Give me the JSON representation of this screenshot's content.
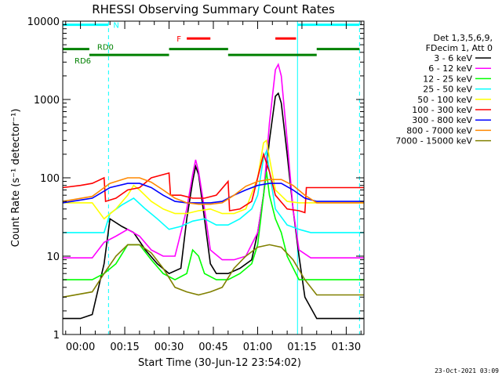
{
  "chart_data": {
    "type": "line",
    "title": "RHESSI Observing Summary Count Rates",
    "xlabel": "Start Time (30-Jun-12 23:54:02)",
    "ylabel": "Count Rate (s⁻¹ detector⁻¹)",
    "y_scale": "log",
    "ylim": [
      1,
      10000
    ],
    "xlim_minutes": [
      -6,
      96
    ],
    "x_ticks": [
      {
        "label": "00:00",
        "minute": 0
      },
      {
        "label": "00:15",
        "minute": 15
      },
      {
        "label": "00:30",
        "minute": 30
      },
      {
        "label": "00:45",
        "minute": 45
      },
      {
        "label": "01:00",
        "minute": 60
      },
      {
        "label": "01:15",
        "minute": 75
      },
      {
        "label": "01:30",
        "minute": 90
      }
    ],
    "y_ticks": [
      {
        "label": "1",
        "value": 1
      },
      {
        "label": "10",
        "value": 10
      },
      {
        "label": "100",
        "value": 100
      },
      {
        "label": "1000",
        "value": 1000
      },
      {
        "label": "10000",
        "value": 10000
      }
    ],
    "legend_header": [
      "Det 1,3,5,6,9,",
      "FDecim 1, Att 0"
    ],
    "legend_position": "right",
    "series": [
      {
        "name": "3 - 6 keV",
        "color": "#000000",
        "values": [
          [
            -6,
            1.6
          ],
          [
            0,
            1.6
          ],
          [
            4,
            1.8
          ],
          [
            8,
            8
          ],
          [
            10,
            30
          ],
          [
            14,
            24
          ],
          [
            18,
            20
          ],
          [
            22,
            12
          ],
          [
            26,
            8
          ],
          [
            30,
            6
          ],
          [
            34,
            7
          ],
          [
            36,
            30
          ],
          [
            38,
            90
          ],
          [
            39,
            140
          ],
          [
            40,
            110
          ],
          [
            42,
            30
          ],
          [
            44,
            8
          ],
          [
            46,
            6
          ],
          [
            50,
            6
          ],
          [
            54,
            7
          ],
          [
            58,
            9
          ],
          [
            60,
            20
          ],
          [
            62,
            60
          ],
          [
            64,
            300
          ],
          [
            66,
            1100
          ],
          [
            67,
            1200
          ],
          [
            68,
            900
          ],
          [
            70,
            200
          ],
          [
            72,
            40
          ],
          [
            74,
            10
          ],
          [
            76,
            3
          ],
          [
            80,
            1.6
          ],
          [
            96,
            1.6
          ]
        ]
      },
      {
        "name": "6 - 12 keV",
        "color": "#ff00ff",
        "values": [
          [
            -6,
            9.5
          ],
          [
            4,
            9.5
          ],
          [
            8,
            15
          ],
          [
            12,
            18
          ],
          [
            16,
            22
          ],
          [
            20,
            18
          ],
          [
            24,
            12
          ],
          [
            28,
            10
          ],
          [
            32,
            10
          ],
          [
            36,
            40
          ],
          [
            38,
            110
          ],
          [
            39,
            170
          ],
          [
            40,
            120
          ],
          [
            42,
            40
          ],
          [
            44,
            12
          ],
          [
            48,
            9
          ],
          [
            52,
            9
          ],
          [
            56,
            10
          ],
          [
            60,
            20
          ],
          [
            62,
            60
          ],
          [
            64,
            500
          ],
          [
            66,
            2400
          ],
          [
            67,
            2800
          ],
          [
            68,
            2000
          ],
          [
            70,
            300
          ],
          [
            72,
            40
          ],
          [
            74,
            12
          ],
          [
            78,
            9.5
          ],
          [
            96,
            9.5
          ]
        ]
      },
      {
        "name": "12 - 25 keV",
        "color": "#00ff00",
        "values": [
          [
            -6,
            5
          ],
          [
            4,
            5
          ],
          [
            8,
            6
          ],
          [
            12,
            8
          ],
          [
            16,
            14
          ],
          [
            20,
            14
          ],
          [
            24,
            9
          ],
          [
            28,
            6
          ],
          [
            32,
            5
          ],
          [
            36,
            6
          ],
          [
            38,
            12
          ],
          [
            40,
            10
          ],
          [
            42,
            6
          ],
          [
            46,
            5
          ],
          [
            50,
            5
          ],
          [
            54,
            6
          ],
          [
            58,
            8
          ],
          [
            60,
            14
          ],
          [
            62,
            60
          ],
          [
            63,
            120
          ],
          [
            64,
            60
          ],
          [
            66,
            30
          ],
          [
            68,
            20
          ],
          [
            70,
            10
          ],
          [
            74,
            5
          ],
          [
            96,
            5
          ]
        ]
      },
      {
        "name": "25 - 50 keV",
        "color": "#00ffff",
        "values": [
          [
            -6,
            20
          ],
          [
            4,
            20
          ],
          [
            8,
            20
          ],
          [
            10,
            35
          ],
          [
            14,
            45
          ],
          [
            18,
            55
          ],
          [
            22,
            40
          ],
          [
            26,
            30
          ],
          [
            30,
            22
          ],
          [
            34,
            24
          ],
          [
            38,
            28
          ],
          [
            42,
            30
          ],
          [
            46,
            25
          ],
          [
            50,
            25
          ],
          [
            54,
            30
          ],
          [
            58,
            40
          ],
          [
            60,
            60
          ],
          [
            62,
            180
          ],
          [
            63,
            220
          ],
          [
            64,
            120
          ],
          [
            66,
            40
          ],
          [
            70,
            25
          ],
          [
            74,
            22
          ],
          [
            78,
            20
          ],
          [
            96,
            20
          ]
        ]
      },
      {
        "name": "50 - 100 keV",
        "color": "#ffff00",
        "values": [
          [
            -6,
            48
          ],
          [
            4,
            48
          ],
          [
            8,
            30
          ],
          [
            12,
            40
          ],
          [
            16,
            60
          ],
          [
            18,
            80
          ],
          [
            20,
            70
          ],
          [
            24,
            50
          ],
          [
            28,
            40
          ],
          [
            32,
            35
          ],
          [
            36,
            35
          ],
          [
            40,
            38
          ],
          [
            44,
            40
          ],
          [
            48,
            35
          ],
          [
            52,
            35
          ],
          [
            56,
            40
          ],
          [
            60,
            100
          ],
          [
            62,
            280
          ],
          [
            63,
            300
          ],
          [
            64,
            180
          ],
          [
            66,
            70
          ],
          [
            70,
            50
          ],
          [
            74,
            48
          ],
          [
            78,
            48
          ],
          [
            96,
            48
          ]
        ]
      },
      {
        "name": "100 - 300 keV",
        "color": "#ff0000",
        "values": [
          [
            -6,
            75
          ],
          [
            0,
            80
          ],
          [
            4,
            85
          ],
          [
            8,
            100
          ],
          [
            8.5,
            50
          ],
          [
            12,
            55
          ],
          [
            16,
            70
          ],
          [
            20,
            75
          ],
          [
            24,
            100
          ],
          [
            28,
            110
          ],
          [
            30,
            115
          ],
          [
            30.5,
            60
          ],
          [
            34,
            60
          ],
          [
            38,
            55
          ],
          [
            42,
            55
          ],
          [
            46,
            60
          ],
          [
            50,
            90
          ],
          [
            50.5,
            38
          ],
          [
            54,
            40
          ],
          [
            58,
            50
          ],
          [
            60,
            100
          ],
          [
            62,
            200
          ],
          [
            64,
            120
          ],
          [
            66,
            60
          ],
          [
            70,
            40
          ],
          [
            74,
            38
          ],
          [
            76,
            36
          ],
          [
            76.5,
            75
          ],
          [
            96,
            75
          ]
        ]
      },
      {
        "name": "300 - 800 keV",
        "color": "#0000ff",
        "values": [
          [
            -6,
            48
          ],
          [
            4,
            55
          ],
          [
            10,
            75
          ],
          [
            16,
            85
          ],
          [
            20,
            85
          ],
          [
            24,
            75
          ],
          [
            28,
            60
          ],
          [
            32,
            50
          ],
          [
            36,
            48
          ],
          [
            40,
            48
          ],
          [
            44,
            48
          ],
          [
            48,
            50
          ],
          [
            52,
            60
          ],
          [
            56,
            70
          ],
          [
            60,
            80
          ],
          [
            64,
            85
          ],
          [
            68,
            85
          ],
          [
            72,
            70
          ],
          [
            76,
            55
          ],
          [
            80,
            50
          ],
          [
            96,
            50
          ]
        ]
      },
      {
        "name": "800 - 7000 keV",
        "color": "#ff8800",
        "values": [
          [
            -6,
            50
          ],
          [
            4,
            58
          ],
          [
            10,
            85
          ],
          [
            16,
            100
          ],
          [
            20,
            100
          ],
          [
            24,
            88
          ],
          [
            28,
            70
          ],
          [
            32,
            55
          ],
          [
            36,
            48
          ],
          [
            40,
            46
          ],
          [
            44,
            46
          ],
          [
            48,
            48
          ],
          [
            52,
            60
          ],
          [
            56,
            78
          ],
          [
            60,
            90
          ],
          [
            64,
            95
          ],
          [
            68,
            95
          ],
          [
            72,
            80
          ],
          [
            76,
            60
          ],
          [
            80,
            48
          ],
          [
            96,
            48
          ]
        ]
      },
      {
        "name": "7000 - 15000 keV",
        "color": "#808000",
        "values": [
          [
            -6,
            3
          ],
          [
            4,
            3.5
          ],
          [
            8,
            6
          ],
          [
            12,
            10
          ],
          [
            16,
            14
          ],
          [
            20,
            14
          ],
          [
            24,
            11
          ],
          [
            28,
            7
          ],
          [
            32,
            4
          ],
          [
            36,
            3.5
          ],
          [
            40,
            3.2
          ],
          [
            44,
            3.5
          ],
          [
            48,
            4
          ],
          [
            52,
            7
          ],
          [
            56,
            10
          ],
          [
            60,
            13
          ],
          [
            64,
            14
          ],
          [
            68,
            13
          ],
          [
            72,
            9
          ],
          [
            76,
            5
          ],
          [
            80,
            3.2
          ],
          [
            96,
            3.2
          ]
        ]
      }
    ],
    "vertical_markers": [
      {
        "minute": -6,
        "style": "solid",
        "color": "#00ffff"
      },
      {
        "minute": 9.5,
        "style": "dashed",
        "color": "#00ffff"
      },
      {
        "minute": 73.5,
        "style": "solid",
        "color": "#00ffff"
      },
      {
        "minute": 94.5,
        "style": "dashed",
        "color": "#00ffff"
      }
    ],
    "state_bars": [
      {
        "label": "N",
        "color": "#00ffff",
        "level": 9000,
        "segments": [
          [
            -6,
            9.5
          ],
          [
            73.5,
            94.5
          ]
        ]
      },
      {
        "label": "F",
        "color": "#ff0000",
        "level": 6000,
        "segments": [
          [
            36,
            44
          ],
          [
            66,
            73
          ]
        ]
      },
      {
        "label": "RD0",
        "color": "#008000",
        "level": 4400,
        "segments": [
          [
            -6,
            3
          ],
          [
            30,
            50
          ],
          [
            80,
            94.5
          ]
        ]
      },
      {
        "label": "RD6",
        "color": "#008000",
        "level": 3700,
        "segments": [
          [
            3,
            30
          ],
          [
            50,
            80
          ]
        ]
      }
    ],
    "timestamp": "23-Oct-2021 03:09"
  }
}
